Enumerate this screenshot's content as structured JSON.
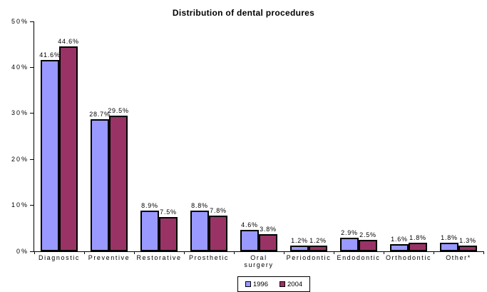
{
  "chart_data": {
    "type": "bar",
    "title": "Distribution of dental procedures",
    "categories": [
      "Diagnostic",
      "Preventive",
      "Restorative",
      "Prosthetic",
      "Oral\nsurgery",
      "Periodontic",
      "Endodontic",
      "Orthodontic",
      "Other*"
    ],
    "series": [
      {
        "name": "1996",
        "color": "#9999FF",
        "values": [
          41.6,
          28.7,
          8.9,
          8.8,
          4.6,
          1.2,
          2.9,
          1.6,
          1.8
        ]
      },
      {
        "name": "2004",
        "color": "#993366",
        "values": [
          44.6,
          29.5,
          7.5,
          7.8,
          3.8,
          1.2,
          2.5,
          1.8,
          1.3
        ]
      }
    ],
    "data_labels": [
      [
        "41.6%",
        "28.7%",
        "8.9%",
        "8.8%",
        "4.6%",
        "1.2%",
        "2.9%",
        "1.6%",
        "1.8%"
      ],
      [
        "44.6%",
        "29.5%",
        "7.5%",
        "7.8%",
        "3.8%",
        "1.2%",
        "2.5%",
        "1.8%",
        "1.3%"
      ]
    ],
    "xlabel": "",
    "ylabel": "",
    "ylim": [
      0,
      50
    ],
    "ytick_labels": [
      "0%",
      "10%",
      "20%",
      "30%",
      "40%",
      "50%"
    ],
    "grid": false,
    "legend_position": "bottom",
    "bar_border_color": "#000000",
    "axis_color": "#000000",
    "background_color": "#FFFFFF"
  }
}
